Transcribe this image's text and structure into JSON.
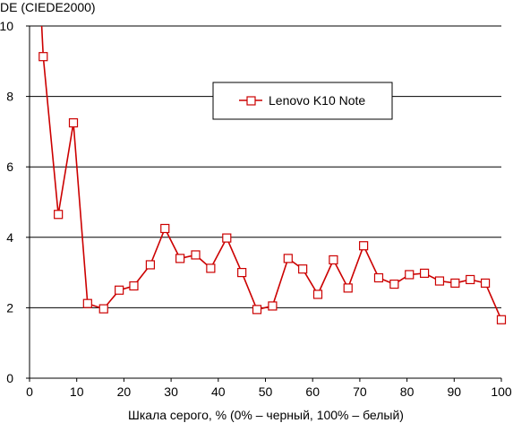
{
  "chart_data": {
    "type": "line",
    "ylabel": "DE (CIEDE2000)",
    "xlabel": "Шкала серого, % (0% – черный, 100% – белый)",
    "xlim": [
      0,
      100
    ],
    "ylim": [
      0,
      10
    ],
    "xticks": [
      0,
      10,
      20,
      30,
      40,
      50,
      60,
      70,
      80,
      90,
      100
    ],
    "yticks": [
      0,
      2,
      4,
      6,
      8,
      10
    ],
    "grid": "horizontal",
    "legend_position": "top-center",
    "series": [
      {
        "name": "Lenovo K10 Note",
        "color": "#cc0000",
        "marker": "open-square",
        "x": [
          2.5,
          2.9,
          6.1,
          9.3,
          12.3,
          15.7,
          19.0,
          22.1,
          25.6,
          28.7,
          31.9,
          35.2,
          38.4,
          41.8,
          45.0,
          48.2,
          51.5,
          54.8,
          57.9,
          61.1,
          64.4,
          67.5,
          70.8,
          74.0,
          77.3,
          80.5,
          83.7,
          86.9,
          90.2,
          93.4,
          96.6,
          100
        ],
        "y": [
          10.2,
          9.13,
          4.65,
          7.25,
          2.12,
          1.97,
          2.5,
          2.62,
          3.22,
          4.25,
          3.4,
          3.5,
          3.12,
          3.98,
          3.0,
          1.95,
          2.05,
          3.4,
          3.1,
          2.38,
          3.36,
          2.56,
          3.76,
          2.85,
          2.67,
          2.94,
          2.98,
          2.76,
          2.7,
          2.8,
          2.7,
          1.66
        ],
        "markers_from_index": 1
      }
    ]
  }
}
